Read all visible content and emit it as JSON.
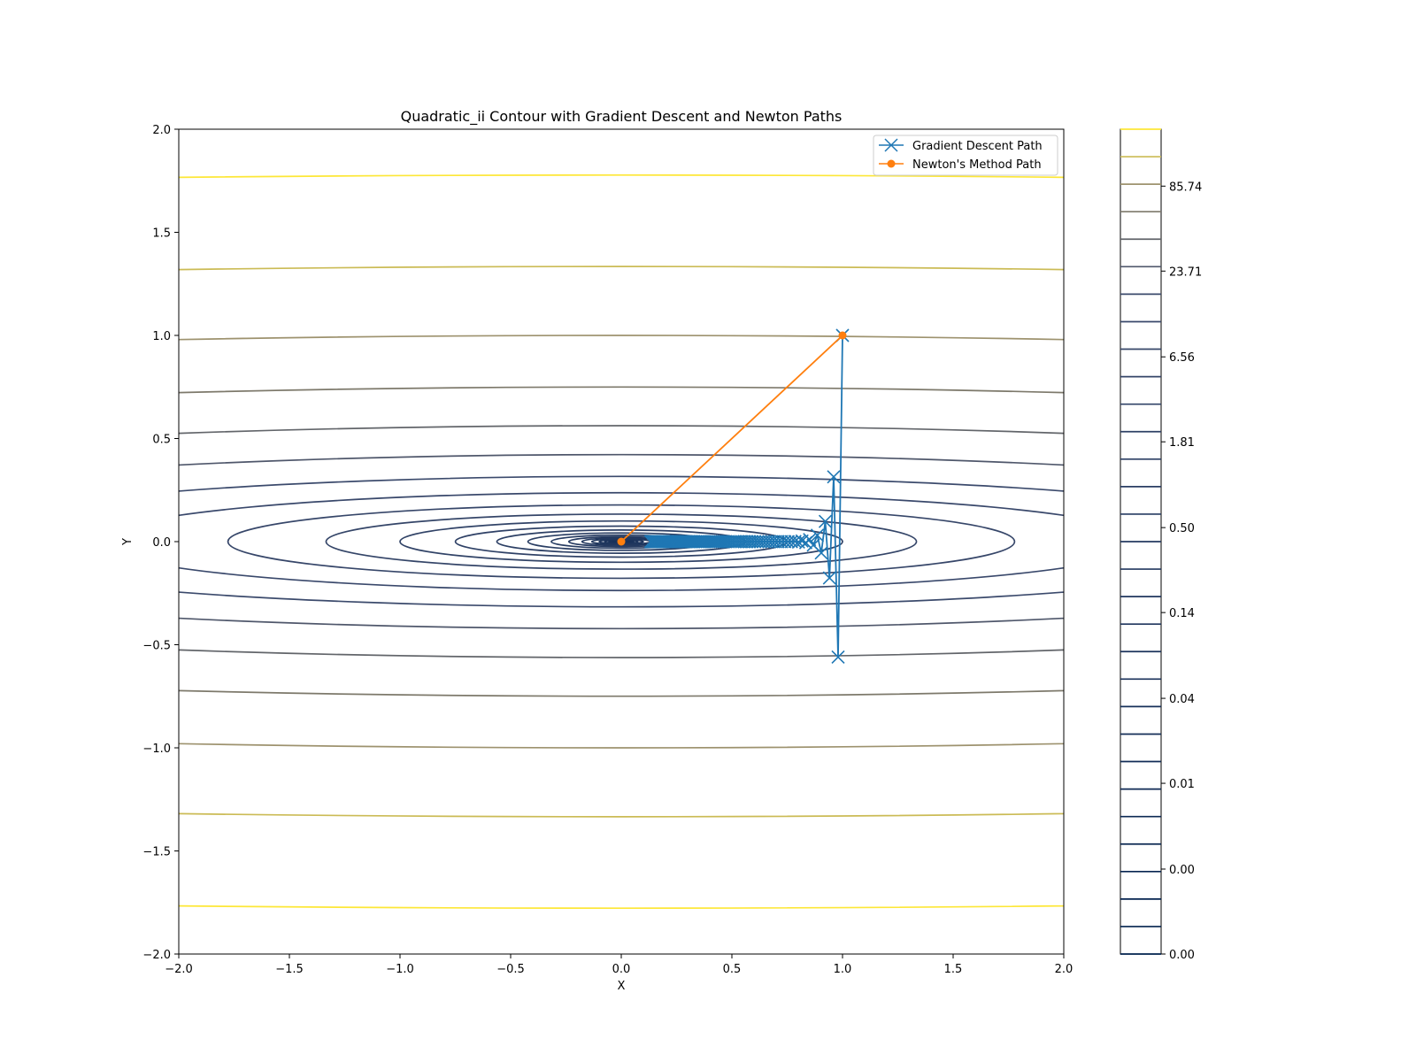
{
  "chart_data": {
    "type": "contour",
    "title": "Quadratic_ii Contour with Gradient Descent and Newton Paths",
    "xlabel": "X",
    "ylabel": "Y",
    "xlim": [
      -2.0,
      2.0
    ],
    "ylim": [
      -2.0,
      2.0
    ],
    "x_ticks": [
      "−2.0",
      "−1.5",
      "−1.0",
      "−0.5",
      "0.0",
      "0.5",
      "1.0",
      "1.5",
      "2.0"
    ],
    "y_ticks": [
      "−2.0",
      "−1.5",
      "−1.0",
      "−0.5",
      "0.0",
      "0.5",
      "1.0",
      "1.5",
      "2.0"
    ],
    "x_tick_values": [
      -2.0,
      -1.5,
      -1.0,
      -0.5,
      0.0,
      0.5,
      1.0,
      1.5,
      2.0
    ],
    "y_tick_values": [
      -2.0,
      -1.5,
      -1.0,
      -0.5,
      0.0,
      0.5,
      1.0,
      1.5,
      2.0
    ],
    "contour": {
      "function_form": "a*x^2 + b*y^2",
      "a": 1,
      "b": 100,
      "levels": [
        1e-05,
        1.78e-05,
        3.16e-05,
        5.62e-05,
        0.0001,
        0.000178,
        0.000316,
        0.000562,
        0.001,
        0.00178,
        0.00316,
        0.00562,
        0.01,
        0.0178,
        0.0316,
        0.0562,
        0.1,
        0.178,
        0.316,
        0.562,
        1,
        1.78,
        3.16,
        5.62,
        10,
        17.8,
        31.6,
        56.2,
        100,
        178,
        316
      ],
      "colormap": "cividis",
      "colors": {
        "low": "#00204d",
        "mid": "#3b4a6c",
        "gray": "#6a6a6a",
        "tan": "#a3976e",
        "high": "#fde737"
      }
    },
    "colorbar": {
      "ticks": [
        "85.74",
        "23.71",
        "6.56",
        "1.81",
        "0.50",
        "0.14",
        "0.04",
        "0.01",
        "0.00",
        "0.00"
      ],
      "tick_fractions": [
        0.931,
        0.828,
        0.724,
        0.621,
        0.517,
        0.414,
        0.31,
        0.207,
        0.103,
        0.0
      ]
    },
    "series": [
      {
        "name": "Gradient Descent Path",
        "color": "#1f77b4",
        "marker": "x",
        "x": [
          1.0,
          0.98,
          0.96,
          0.941,
          0.922,
          0.904,
          0.886,
          0.868,
          0.851,
          0.834,
          0.817,
          0.801,
          0.785,
          0.769,
          0.754,
          0.739,
          0.724,
          0.709,
          0.695,
          0.681,
          0.668,
          0.654,
          0.641,
          0.628,
          0.616,
          0.603,
          0.591,
          0.58,
          0.568,
          0.557,
          0.545,
          0.535,
          0.524,
          0.513,
          0.503,
          0.493,
          0.483,
          0.474,
          0.464,
          0.455,
          0.446,
          0.437,
          0.428,
          0.42,
          0.411,
          0.403,
          0.395,
          0.387,
          0.379,
          0.372,
          0.364,
          0.357,
          0.35,
          0.343,
          0.336,
          0.329,
          0.323,
          0.316,
          0.31,
          0.304,
          0.298,
          0.292,
          0.286,
          0.28,
          0.274,
          0.269,
          0.264,
          0.258,
          0.253,
          0.248,
          0.243,
          0.238,
          0.233,
          0.229,
          0.224,
          0.22,
          0.215,
          0.211,
          0.207,
          0.203,
          0.199,
          0.195,
          0.191,
          0.187,
          0.183,
          0.18,
          0.176,
          0.173,
          0.169,
          0.166,
          0.163,
          0.159,
          0.156,
          0.153,
          0.15,
          0.147,
          0.144,
          0.141,
          0.138,
          0.136,
          0.133
        ],
        "y": [
          1.0,
          -0.56,
          0.314,
          -0.176,
          0.098,
          -0.055,
          0.031,
          -0.017,
          0.01,
          -0.005,
          0.003,
          -0.002,
          0.001,
          0.0,
          0.0,
          0.0,
          0.0,
          0.0,
          0.0,
          0.0,
          0.0,
          0.0,
          0.0,
          0.0,
          0.0,
          0.0,
          0.0,
          0.0,
          0.0,
          0.0,
          0.0,
          0.0,
          0.0,
          0.0,
          0.0,
          0.0,
          0.0,
          0.0,
          0.0,
          0.0,
          0.0,
          0.0,
          0.0,
          0.0,
          0.0,
          0.0,
          0.0,
          0.0,
          0.0,
          0.0,
          0.0,
          0.0,
          0.0,
          0.0,
          0.0,
          0.0,
          0.0,
          0.0,
          0.0,
          0.0,
          0.0,
          0.0,
          0.0,
          0.0,
          0.0,
          0.0,
          0.0,
          0.0,
          0.0,
          0.0,
          0.0,
          0.0,
          0.0,
          0.0,
          0.0,
          0.0,
          0.0,
          0.0,
          0.0,
          0.0,
          0.0,
          0.0,
          0.0,
          0.0,
          0.0,
          0.0,
          0.0,
          0.0,
          0.0,
          0.0,
          0.0,
          0.0,
          0.0,
          0.0,
          0.0,
          0.0,
          0.0,
          0.0,
          0.0,
          0.0,
          0.0
        ]
      },
      {
        "name": "Newton's Method Path",
        "color": "#ff7f0e",
        "marker": "o",
        "x": [
          1.0,
          0.0
        ],
        "y": [
          1.0,
          0.0
        ]
      }
    ],
    "legend_position": "top-right",
    "grid": false
  }
}
